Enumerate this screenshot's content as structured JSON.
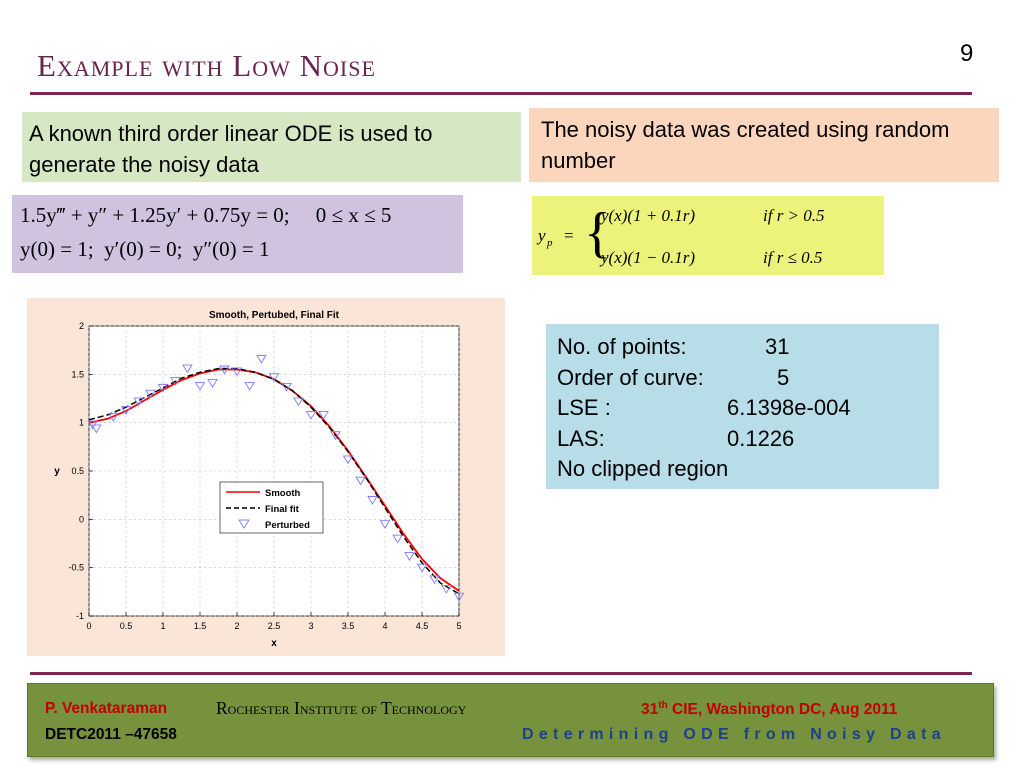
{
  "slide": {
    "title": "Example with Low Noise",
    "page_number": "9",
    "accent_color": "#7a2552"
  },
  "left_box": {
    "text": "A known third order linear ODE is used to generate the noisy data"
  },
  "right_box": {
    "text": "The noisy data was created using random number"
  },
  "ode": {
    "line1": "1.5y‴ + y″ + 1.25y′ + 0.75y = 0;     0 ≤ x ≤ 5",
    "line2": "y(0) = 1;  y′(0) = 0;  y″(0) = 1"
  },
  "perturbation": {
    "lhs": "y",
    "lhs_sub": "p",
    "case1": "y(x)(1 + 0.1r)",
    "cond1": "if  r > 0.5",
    "case2": "y(x)(1 − 0.1r)",
    "cond2": "if  r ≤ 0.5"
  },
  "stats": {
    "points_label": "No. of points:",
    "points_value": "31",
    "order_label": "Order of curve:",
    "order_value": "5",
    "lse_label": "LSE :",
    "lse_value": "6.1398e-004",
    "las_label": "LAS:",
    "las_value": "0.1226",
    "note": "No clipped region"
  },
  "footer": {
    "author": "P. Venkataraman",
    "institute": "Rochester Institute of Technology",
    "conf_prefix": "31",
    "conf_sup": "th",
    "conf_suffix": " CIE, Washington DC, Aug 2011",
    "paper_id": "DETC2011 –47658",
    "topic": "Determining ODE from Noisy Data"
  },
  "chart_data": {
    "type": "line",
    "title": "Smooth, Pertubed, Final Fit",
    "xlabel": "x",
    "ylabel": "y",
    "xlim": [
      0,
      5
    ],
    "ylim": [
      -1,
      2
    ],
    "xticks": [
      "0",
      "0.5",
      "1",
      "1.5",
      "2",
      "2.5",
      "3",
      "3.5",
      "4",
      "4.5",
      "5"
    ],
    "yticks": [
      "2",
      "1.5",
      "1",
      "0.5",
      "0",
      "-0.5",
      "-1"
    ],
    "grid": true,
    "legend_position": "center-left",
    "series": [
      {
        "name": "Smooth",
        "style": "solid",
        "color": "#ff0000",
        "x": [
          0,
          0.25,
          0.5,
          0.75,
          1,
          1.25,
          1.5,
          1.75,
          2,
          2.25,
          2.5,
          2.75,
          3,
          3.25,
          3.5,
          3.75,
          4,
          4.25,
          4.5,
          4.75,
          5
        ],
        "y": [
          1.0,
          1.04,
          1.12,
          1.23,
          1.34,
          1.44,
          1.51,
          1.55,
          1.55,
          1.52,
          1.45,
          1.33,
          1.17,
          0.96,
          0.71,
          0.43,
          0.14,
          -0.15,
          -0.41,
          -0.61,
          -0.74
        ]
      },
      {
        "name": "Final fit",
        "style": "dashed",
        "color": "#000000",
        "x": [
          0,
          0.25,
          0.5,
          0.75,
          1,
          1.25,
          1.5,
          1.75,
          2,
          2.25,
          2.5,
          2.75,
          3,
          3.25,
          3.5,
          3.75,
          4,
          4.25,
          4.5,
          4.75,
          5
        ],
        "y": [
          1.03,
          1.08,
          1.16,
          1.26,
          1.36,
          1.46,
          1.52,
          1.56,
          1.56,
          1.52,
          1.45,
          1.33,
          1.16,
          0.95,
          0.7,
          0.42,
          0.12,
          -0.18,
          -0.45,
          -0.66,
          -0.77
        ]
      },
      {
        "name": "Perturbed",
        "style": "marker",
        "color": "#7b7bff",
        "x": [
          0.1,
          0.33,
          0.5,
          0.67,
          0.83,
          1.0,
          1.17,
          1.33,
          1.5,
          1.67,
          1.83,
          2.0,
          2.17,
          2.33,
          2.5,
          2.67,
          2.83,
          3.0,
          3.17,
          3.33,
          3.5,
          3.67,
          3.83,
          4.0,
          4.17,
          4.33,
          4.5,
          4.67,
          4.83,
          5.0,
          0.05
        ],
        "y": [
          0.94,
          1.06,
          1.13,
          1.22,
          1.3,
          1.36,
          1.43,
          1.56,
          1.38,
          1.41,
          1.55,
          1.53,
          1.38,
          1.66,
          1.47,
          1.37,
          1.22,
          1.08,
          1.08,
          0.87,
          0.62,
          0.4,
          0.2,
          -0.05,
          -0.2,
          -0.38,
          -0.5,
          -0.62,
          -0.72,
          -0.8,
          0.98
        ]
      }
    ]
  }
}
